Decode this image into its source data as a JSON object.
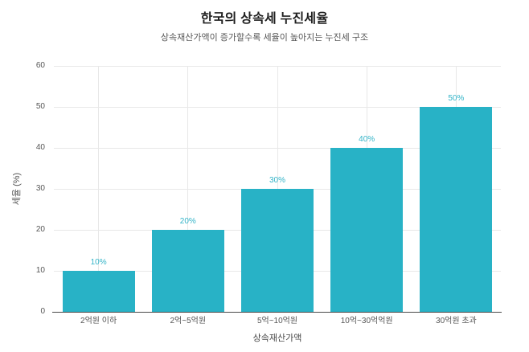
{
  "chart_data": {
    "type": "bar",
    "title": "한국의 상속세 누진세율",
    "subtitle": "상속재산가액이 증가할수록 세율이 높아지는 누진세 구조",
    "xlabel": "상속재산가액",
    "ylabel": "세율 (%)",
    "categories": [
      "2억원 이하",
      "2억~5억원",
      "5억~10억원",
      "10억~30억억원",
      "30억원 초과"
    ],
    "values": [
      10,
      20,
      30,
      40,
      50
    ],
    "value_labels": [
      "10%",
      "20%",
      "30%",
      "40%",
      "50%"
    ],
    "ylim": [
      0,
      60
    ],
    "yticks": [
      0,
      10,
      20,
      30,
      40,
      50,
      60
    ],
    "grid": true,
    "legend": "none",
    "bar_color": "#28b2c6",
    "value_label_color": "#33b4c8",
    "grid_color": "#e8e8e8",
    "axis_line_color": "#4a4a4a",
    "tick_label_color": "#555555",
    "title_color": "#1f1f1f"
  }
}
